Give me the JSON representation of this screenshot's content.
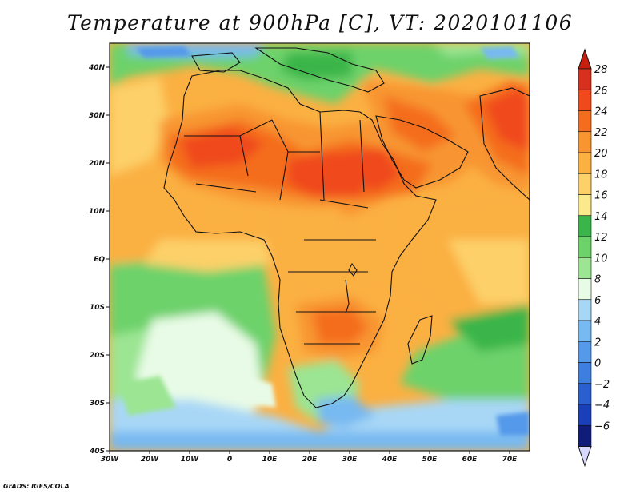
{
  "title": "Temperature at 900hPa [C], VT: 2020101106",
  "credit": "GrADS: IGES/COLA",
  "map": {
    "type": "filled-contour",
    "lon_range": [
      -30,
      75
    ],
    "lat_range": [
      -40,
      45
    ],
    "lat_ticks": [
      {
        "value": 40,
        "label": "40N"
      },
      {
        "value": 30,
        "label": "30N"
      },
      {
        "value": 20,
        "label": "20N"
      },
      {
        "value": 10,
        "label": "10N"
      },
      {
        "value": 0,
        "label": "EQ"
      },
      {
        "value": -10,
        "label": "10S"
      },
      {
        "value": -20,
        "label": "20S"
      },
      {
        "value": -30,
        "label": "30S"
      },
      {
        "value": -40,
        "label": "40S"
      }
    ],
    "lon_ticks": [
      {
        "value": -30,
        "label": "30W"
      },
      {
        "value": -20,
        "label": "20W"
      },
      {
        "value": -10,
        "label": "10W"
      },
      {
        "value": 0,
        "label": "0"
      },
      {
        "value": 10,
        "label": "10E"
      },
      {
        "value": 20,
        "label": "20E"
      },
      {
        "value": 30,
        "label": "30E"
      },
      {
        "value": 40,
        "label": "40E"
      },
      {
        "value": 50,
        "label": "50E"
      },
      {
        "value": 60,
        "label": "60E"
      },
      {
        "value": 70,
        "label": "70E"
      }
    ]
  },
  "colorbar": {
    "levels": [
      28,
      26,
      24,
      22,
      20,
      18,
      16,
      14,
      12,
      10,
      8,
      6,
      4,
      2,
      0,
      -2,
      -4,
      -6
    ],
    "labels": [
      "28",
      "26",
      "24",
      "22",
      "20",
      "18",
      "16",
      "14",
      "12",
      "10",
      "8",
      "6",
      "4",
      "2",
      "0",
      "−2",
      "−4",
      "−6"
    ],
    "colors": [
      "#d7301f",
      "#f0491c",
      "#f46d1f",
      "#f89530",
      "#fbb042",
      "#fdd069",
      "#fbe98c",
      "#3ab54a",
      "#6dd26a",
      "#9be593",
      "#e8fbe6",
      "#a8d7f6",
      "#77b9f1",
      "#5499ea",
      "#3d7ede",
      "#2a5fd0",
      "#1b3fb8",
      "#101c7a"
    ],
    "over_color": "#c81e10",
    "under_color": "#d8d8ff"
  }
}
